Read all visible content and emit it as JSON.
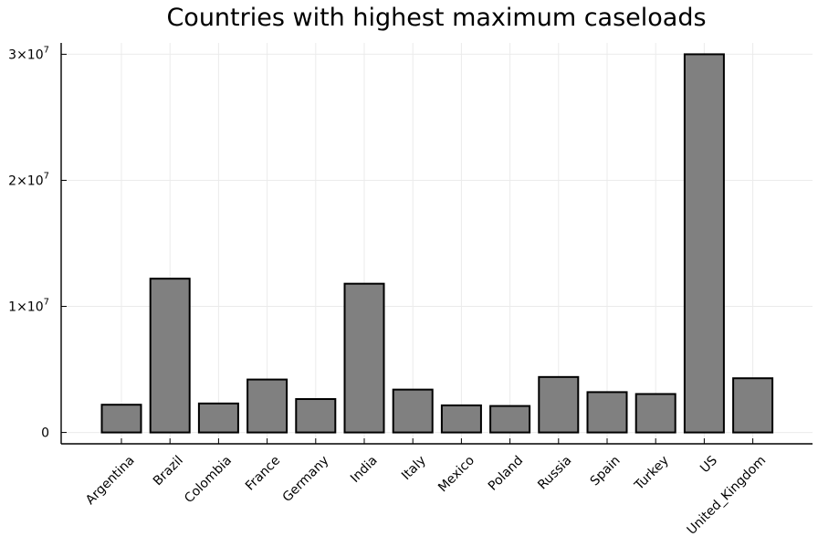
{
  "chart_data": {
    "type": "bar",
    "title": "Countries with highest maximum caseloads",
    "xlabel": "",
    "ylabel": "",
    "categories": [
      "Argentina",
      "Brazil",
      "Colombia",
      "France",
      "Germany",
      "India",
      "Italy",
      "Mexico",
      "Poland",
      "Russia",
      "Spain",
      "Turkey",
      "US",
      "United_Kingdom"
    ],
    "values": [
      2200000,
      12200000,
      2300000,
      4200000,
      2650000,
      11800000,
      3400000,
      2150000,
      2100000,
      4400000,
      3200000,
      3050000,
      30000000,
      4300000
    ],
    "ylim": [
      -900000,
      30900000
    ],
    "yticks": [
      {
        "value": 0,
        "mantissa": "0",
        "exponent": ""
      },
      {
        "value": 10000000,
        "mantissa": "1×10",
        "exponent": "7"
      },
      {
        "value": 20000000,
        "mantissa": "2×10",
        "exponent": "7"
      },
      {
        "value": 30000000,
        "mantissa": "3×10",
        "exponent": "7"
      }
    ],
    "bar_color": "#808080",
    "grid": true,
    "legend": "none"
  }
}
